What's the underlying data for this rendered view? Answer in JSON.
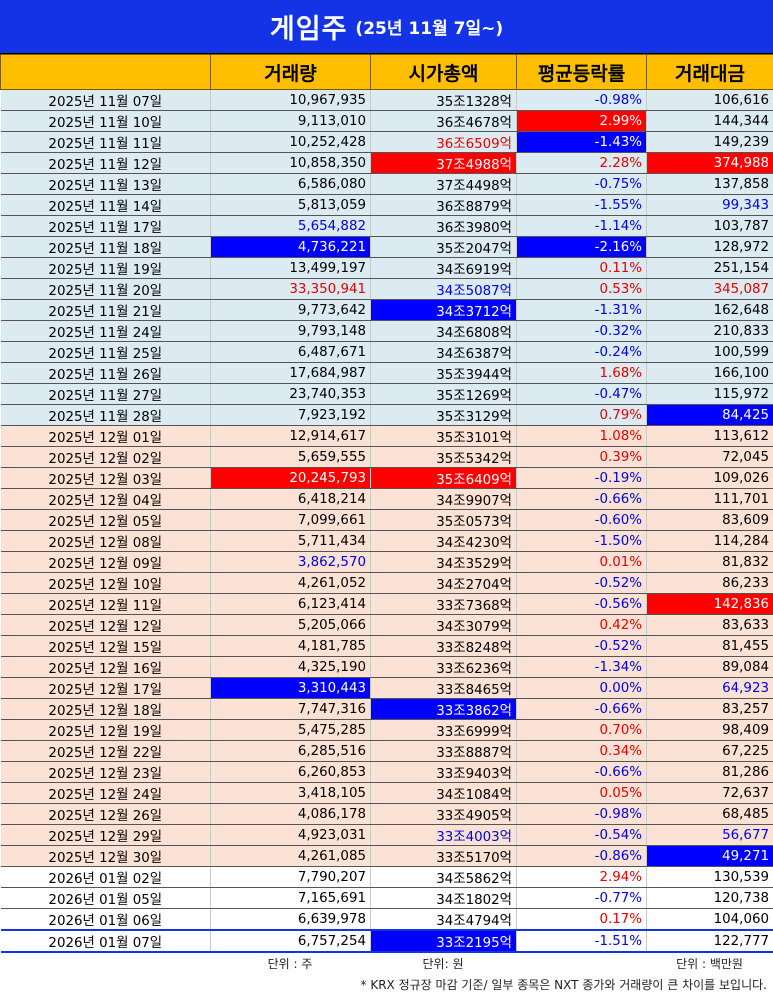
{
  "title": {
    "main": "게임주",
    "sub": "(25년 11월 7일~)"
  },
  "headers": [
    "",
    "거래량",
    "시가총액",
    "평균등락률",
    "거래대금"
  ],
  "rows": [
    {
      "date": "2025년 11월 07일",
      "vol": "10,967,935",
      "cap": "35조1328억",
      "chg": "-0.98%",
      "amt": "106,616",
      "p": "nov",
      "vs": "",
      "cs": "",
      "gs": "",
      "as": ""
    },
    {
      "date": "2025년 11월 10일",
      "vol": "9,113,010",
      "cap": "36조4678억",
      "chg": "2.99%",
      "amt": "144,344",
      "p": "nov",
      "vs": "",
      "cs": "",
      "gs": "hl-red",
      "as": ""
    },
    {
      "date": "2025년 11월 11일",
      "vol": "10,252,428",
      "cap": "36조6509억",
      "chg": "-1.43%",
      "amt": "149,239",
      "p": "nov",
      "vs": "",
      "cs": "txt-red",
      "gs": "hl-blue",
      "as": ""
    },
    {
      "date": "2025년 11월 12일",
      "vol": "10,858,350",
      "cap": "37조4988억",
      "chg": "2.28%",
      "amt": "374,988",
      "p": "nov",
      "vs": "",
      "cs": "hl-red",
      "gs": "",
      "as": "hl-red"
    },
    {
      "date": "2025년 11월 13일",
      "vol": "6,586,080",
      "cap": "37조4498억",
      "chg": "-0.75%",
      "amt": "137,858",
      "p": "nov",
      "vs": "",
      "cs": "",
      "gs": "",
      "as": ""
    },
    {
      "date": "2025년 11월 14일",
      "vol": "5,813,059",
      "cap": "36조8879억",
      "chg": "-1.55%",
      "amt": "99,343",
      "p": "nov",
      "vs": "",
      "cs": "",
      "gs": "",
      "as": "txt-blue"
    },
    {
      "date": "2025년 11월 17일",
      "vol": "5,654,882",
      "cap": "36조3980억",
      "chg": "-1.14%",
      "amt": "103,787",
      "p": "nov",
      "vs": "txt-blue",
      "cs": "",
      "gs": "",
      "as": ""
    },
    {
      "date": "2025년 11월 18일",
      "vol": "4,736,221",
      "cap": "35조2047억",
      "chg": "-2.16%",
      "amt": "128,972",
      "p": "nov",
      "vs": "hl-blue",
      "cs": "",
      "gs": "hl-blue",
      "as": ""
    },
    {
      "date": "2025년 11월 19일",
      "vol": "13,499,197",
      "cap": "34조6919억",
      "chg": "0.11%",
      "amt": "251,154",
      "p": "nov",
      "vs": "",
      "cs": "",
      "gs": "",
      "as": ""
    },
    {
      "date": "2025년 11월 20일",
      "vol": "33,350,941",
      "cap": "34조5087억",
      "chg": "0.53%",
      "amt": "345,087",
      "p": "nov",
      "vs": "txt-red",
      "cs": "txt-blue",
      "gs": "",
      "as": "txt-red"
    },
    {
      "date": "2025년 11월 21일",
      "vol": "9,773,642",
      "cap": "34조3712억",
      "chg": "-1.31%",
      "amt": "162,648",
      "p": "nov",
      "vs": "",
      "cs": "hl-blue",
      "gs": "",
      "as": ""
    },
    {
      "date": "2025년 11월 24일",
      "vol": "9,793,148",
      "cap": "34조6808억",
      "chg": "-0.32%",
      "amt": "210,833",
      "p": "nov",
      "vs": "",
      "cs": "",
      "gs": "",
      "as": ""
    },
    {
      "date": "2025년 11월 25일",
      "vol": "6,487,671",
      "cap": "34조6387억",
      "chg": "-0.24%",
      "amt": "100,599",
      "p": "nov",
      "vs": "",
      "cs": "",
      "gs": "",
      "as": ""
    },
    {
      "date": "2025년 11월 26일",
      "vol": "17,684,987",
      "cap": "35조3944억",
      "chg": "1.68%",
      "amt": "166,100",
      "p": "nov",
      "vs": "",
      "cs": "",
      "gs": "",
      "as": ""
    },
    {
      "date": "2025년 11월 27일",
      "vol": "23,740,353",
      "cap": "35조1269억",
      "chg": "-0.47%",
      "amt": "115,972",
      "p": "nov",
      "vs": "",
      "cs": "",
      "gs": "",
      "as": ""
    },
    {
      "date": "2025년 11월 28일",
      "vol": "7,923,192",
      "cap": "35조3129억",
      "chg": "0.79%",
      "amt": "84,425",
      "p": "nov",
      "vs": "",
      "cs": "",
      "gs": "",
      "as": "hl-blue"
    },
    {
      "date": "2025년 12월 01일",
      "vol": "12,914,617",
      "cap": "35조3101억",
      "chg": "1.08%",
      "amt": "113,612",
      "p": "dec",
      "vs": "",
      "cs": "",
      "gs": "",
      "as": ""
    },
    {
      "date": "2025년 12월 02일",
      "vol": "5,659,555",
      "cap": "35조5342억",
      "chg": "0.39%",
      "amt": "72,045",
      "p": "dec",
      "vs": "",
      "cs": "",
      "gs": "",
      "as": ""
    },
    {
      "date": "2025년 12월 03일",
      "vol": "20,245,793",
      "cap": "35조6409억",
      "chg": "-0.19%",
      "amt": "109,026",
      "p": "dec",
      "vs": "hl-red",
      "cs": "hl-red",
      "gs": "",
      "as": ""
    },
    {
      "date": "2025년 12월 04일",
      "vol": "6,418,214",
      "cap": "34조9907억",
      "chg": "-0.66%",
      "amt": "111,701",
      "p": "dec",
      "vs": "",
      "cs": "",
      "gs": "",
      "as": ""
    },
    {
      "date": "2025년 12월 05일",
      "vol": "7,099,661",
      "cap": "35조0573억",
      "chg": "-0.60%",
      "amt": "83,609",
      "p": "dec",
      "vs": "",
      "cs": "",
      "gs": "",
      "as": ""
    },
    {
      "date": "2025년 12월 08일",
      "vol": "5,711,434",
      "cap": "34조4230억",
      "chg": "-1.50%",
      "amt": "114,284",
      "p": "dec",
      "vs": "",
      "cs": "",
      "gs": "",
      "as": ""
    },
    {
      "date": "2025년 12월 09일",
      "vol": "3,862,570",
      "cap": "34조3529억",
      "chg": "0.01%",
      "amt": "81,832",
      "p": "dec",
      "vs": "txt-blue",
      "cs": "",
      "gs": "",
      "as": ""
    },
    {
      "date": "2025년 12월 10일",
      "vol": "4,261,052",
      "cap": "34조2704억",
      "chg": "-0.52%",
      "amt": "86,233",
      "p": "dec",
      "vs": "",
      "cs": "",
      "gs": "",
      "as": ""
    },
    {
      "date": "2025년 12월 11일",
      "vol": "6,123,414",
      "cap": "33조7368억",
      "chg": "-0.56%",
      "amt": "142,836",
      "p": "dec",
      "vs": "",
      "cs": "",
      "gs": "",
      "as": "hl-red"
    },
    {
      "date": "2025년 12월 12일",
      "vol": "5,205,066",
      "cap": "34조3079억",
      "chg": "0.42%",
      "amt": "83,633",
      "p": "dec",
      "vs": "",
      "cs": "",
      "gs": "",
      "as": ""
    },
    {
      "date": "2025년 12월 15일",
      "vol": "4,181,785",
      "cap": "33조8248억",
      "chg": "-0.52%",
      "amt": "81,455",
      "p": "dec",
      "vs": "",
      "cs": "",
      "gs": "",
      "as": ""
    },
    {
      "date": "2025년 12월 16일",
      "vol": "4,325,190",
      "cap": "33조6236억",
      "chg": "-1.34%",
      "amt": "89,084",
      "p": "dec",
      "vs": "",
      "cs": "",
      "gs": "",
      "as": ""
    },
    {
      "date": "2025년 12월 17일",
      "vol": "3,310,443",
      "cap": "33조8465억",
      "chg": "0.00%",
      "amt": "64,923",
      "p": "dec",
      "vs": "hl-blue",
      "cs": "",
      "gs": "txt-blue",
      "as": "txt-blue"
    },
    {
      "date": "2025년 12월 18일",
      "vol": "7,747,316",
      "cap": "33조3862억",
      "chg": "-0.66%",
      "amt": "83,257",
      "p": "dec",
      "vs": "",
      "cs": "hl-blue",
      "gs": "",
      "as": ""
    },
    {
      "date": "2025년 12월 19일",
      "vol": "5,475,285",
      "cap": "33조6999억",
      "chg": "0.70%",
      "amt": "98,409",
      "p": "dec",
      "vs": "",
      "cs": "",
      "gs": "",
      "as": ""
    },
    {
      "date": "2025년 12월 22일",
      "vol": "6,285,516",
      "cap": "33조8887억",
      "chg": "0.34%",
      "amt": "67,225",
      "p": "dec",
      "vs": "",
      "cs": "",
      "gs": "",
      "as": ""
    },
    {
      "date": "2025년 12월 23일",
      "vol": "6,260,853",
      "cap": "33조9403억",
      "chg": "-0.66%",
      "amt": "81,286",
      "p": "dec",
      "vs": "",
      "cs": "",
      "gs": "",
      "as": ""
    },
    {
      "date": "2025년 12월 24일",
      "vol": "3,418,105",
      "cap": "34조1084억",
      "chg": "0.05%",
      "amt": "72,637",
      "p": "dec",
      "vs": "",
      "cs": "",
      "gs": "",
      "as": ""
    },
    {
      "date": "2025년 12월 26일",
      "vol": "4,086,178",
      "cap": "33조4905억",
      "chg": "-0.98%",
      "amt": "68,485",
      "p": "dec",
      "vs": "",
      "cs": "",
      "gs": "",
      "as": ""
    },
    {
      "date": "2025년 12월 29일",
      "vol": "4,923,031",
      "cap": "33조4003억",
      "chg": "-0.54%",
      "amt": "56,677",
      "p": "dec",
      "vs": "",
      "cs": "txt-blue",
      "gs": "",
      "as": "txt-blue"
    },
    {
      "date": "2025년 12월 30일",
      "vol": "4,261,085",
      "cap": "33조5170억",
      "chg": "-0.86%",
      "amt": "49,271",
      "p": "dec",
      "vs": "",
      "cs": "",
      "gs": "",
      "as": "hl-blue"
    },
    {
      "date": "2026년 01월 02일",
      "vol": "7,790,207",
      "cap": "34조5862억",
      "chg": "2.94%",
      "amt": "130,539",
      "p": "jan",
      "vs": "",
      "cs": "",
      "gs": "",
      "as": ""
    },
    {
      "date": "2026년 01월 05일",
      "vol": "7,165,691",
      "cap": "34조1802억",
      "chg": "-0.77%",
      "amt": "120,738",
      "p": "jan",
      "vs": "",
      "cs": "",
      "gs": "",
      "as": ""
    },
    {
      "date": "2026년 01월 06일",
      "vol": "6,639,978",
      "cap": "34조4794억",
      "chg": "0.17%",
      "amt": "104,060",
      "p": "jan",
      "vs": "",
      "cs": "",
      "gs": "",
      "as": ""
    },
    {
      "date": "2026년 01월 07일",
      "vol": "6,757,254",
      "cap": "33조2195억",
      "chg": "-1.51%",
      "amt": "122,777",
      "p": "jan last",
      "vs": "",
      "cs": "hl-blue",
      "gs": "",
      "as": ""
    }
  ],
  "units": {
    "vol": "단위 : 주",
    "cap": "단위: 원",
    "amt": "단위 : 백만원"
  },
  "footnote": "* KRX 정규장 마감 기준/ 일부 종목은 NXT 종가와 거래량이 큰 차이를 보입니다."
}
